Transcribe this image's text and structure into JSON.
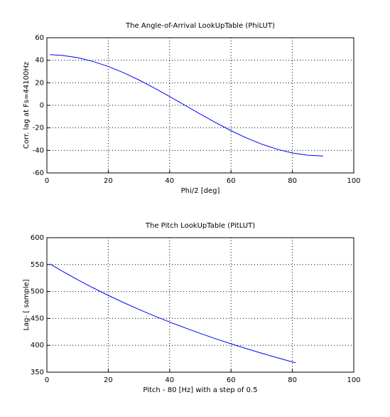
{
  "chart_data": [
    {
      "type": "line",
      "title": "The Angle-of-Arrival LookUpTable (PhiLUT)",
      "x_label": "Phi/2 [deg]",
      "y_label": "Corr. lag at Fs=44100Hz",
      "x": [
        1,
        5,
        10,
        15,
        20,
        25,
        30,
        35,
        40,
        45,
        50,
        55,
        60,
        65,
        70,
        75,
        80,
        85,
        90
      ],
      "series": [
        {
          "color": "#0000ff",
          "values": [
            44.97,
            44.32,
            42.29,
            38.97,
            34.47,
            28.93,
            22.5,
            15.39,
            7.81,
            0,
            -7.81,
            -15.39,
            -22.5,
            -28.93,
            -34.47,
            -38.97,
            -42.29,
            -44.32,
            -45
          ]
        }
      ],
      "xlim": [
        0,
        100
      ],
      "xticks": [
        0,
        20,
        40,
        60,
        80,
        100
      ],
      "ylim": [
        -60,
        60
      ],
      "yticks": [
        -60,
        -40,
        -20,
        0,
        20,
        40,
        60
      ],
      "grid": true
    },
    {
      "type": "line",
      "title": "The Pitch LookUpTable (PitLUT)",
      "x_label": "Pitch - 80 [Hz] with a step of 0.5",
      "y_label": "Lag- [ sample]",
      "x": [
        1,
        5,
        10,
        15,
        20,
        25,
        30,
        35,
        40,
        45,
        50,
        55,
        60,
        65,
        70,
        75,
        80,
        81
      ],
      "series": [
        {
          "color": "#0000ff",
          "values": [
            551.3,
            537.8,
            521.9,
            506.9,
            492.7,
            479.3,
            466.7,
            454.6,
            443.2,
            432.4,
            422.0,
            412.1,
            402.7,
            393.8,
            385.2,
            376.9,
            369.0,
            367.5
          ]
        }
      ],
      "xlim": [
        0,
        100
      ],
      "xticks": [
        0,
        20,
        40,
        60,
        80,
        100
      ],
      "ylim": [
        350,
        600
      ],
      "yticks": [
        350,
        400,
        450,
        500,
        550,
        600
      ],
      "grid": true
    }
  ]
}
